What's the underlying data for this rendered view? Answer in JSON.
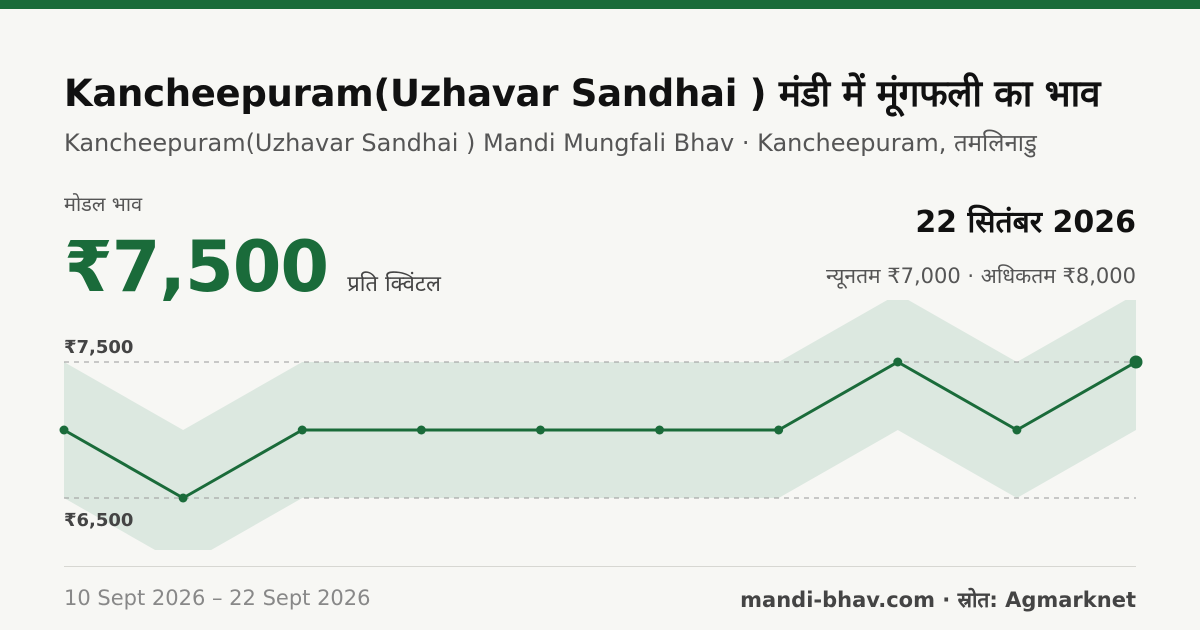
{
  "header": {
    "title": "Kancheepuram(Uzhavar Sandhai ) मंडी में मूंगफली का भाव",
    "subtitle": "Kancheepuram(Uzhavar Sandhai ) Mandi Mungfali Bhav · Kancheepuram, तमलिनाडु"
  },
  "price_block": {
    "label": "मोडल भाव",
    "value": "₹7,500",
    "unit": "प्रति क्विंटल"
  },
  "date_block": {
    "date": "22 सितंबर 2026",
    "range_text": "न्यूनतम ₹7,000 · अधिकतम ₹8,000"
  },
  "footer": {
    "date_range": "10 Sept 2026 – 22 Sept 2026",
    "source": "mandi-bhav.com · स्रोत: Agmarknet"
  },
  "colors": {
    "accent": "#1a6b3a",
    "band": "#dce8e0",
    "background": "#f7f7f4"
  },
  "chart_data": {
    "type": "line",
    "x": [
      "10 Sept 2026",
      "",
      "",
      "",
      "",
      "",
      "",
      "",
      "",
      "22 Sept 2026"
    ],
    "series": [
      {
        "values": [
          7000,
          6500,
          7000,
          7000,
          7000,
          7000,
          7000,
          7500,
          7000,
          7500
        ]
      }
    ],
    "band": {
      "min": [
        6500,
        6000,
        6500,
        6500,
        6500,
        6500,
        6500,
        7000,
        6500,
        7000
      ],
      "max": [
        7500,
        7000,
        7500,
        7500,
        7500,
        7500,
        7500,
        8000,
        7500,
        8000
      ]
    },
    "reference_lines": [
      {
        "value": 7500,
        "label": "₹7,500"
      },
      {
        "value": 6500,
        "label": "₹6,500"
      }
    ],
    "ylim": [
      6250,
      7750
    ]
  }
}
